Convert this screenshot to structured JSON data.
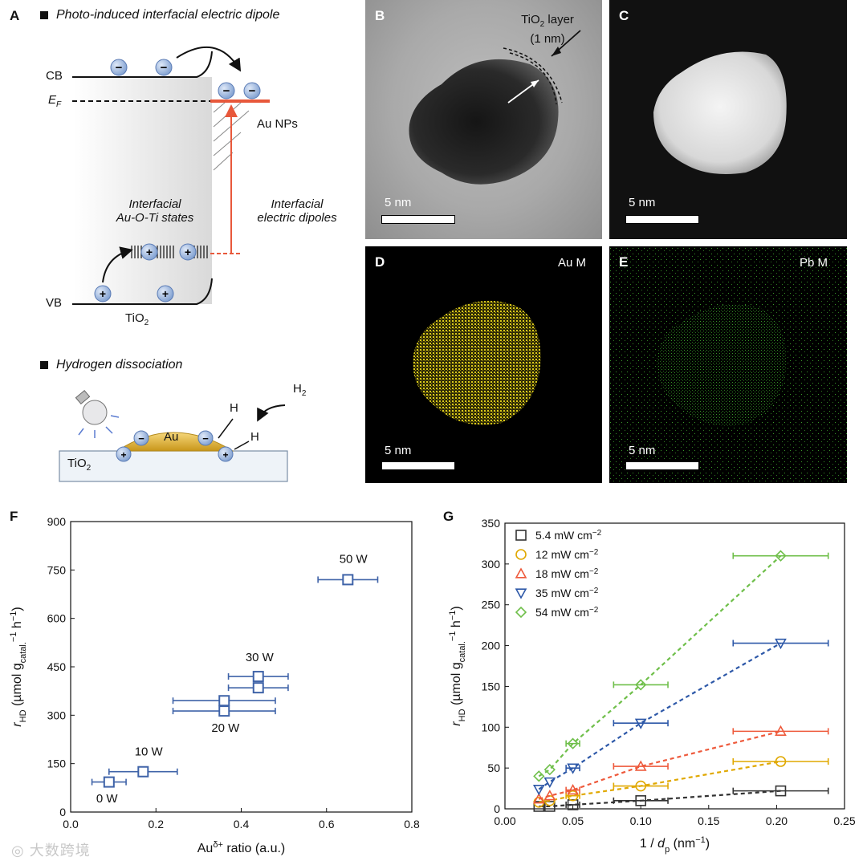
{
  "panelA": {
    "letter": "A",
    "heading": "Photo-induced interfacial electric dipole",
    "cb": "CB",
    "ef": "E",
    "ef_sub": "F",
    "vb": "VB",
    "au_nps": "Au NPs",
    "interfacial_states_1": "Interfacial",
    "interfacial_states_2": "Au-O-Ti states",
    "dipole_1": "Interfacial",
    "dipole_2": "electric dipoles",
    "tio2": "TiO",
    "tio2_sub": "2",
    "heading2": "Hydrogen dissociation",
    "h2": "H",
    "h2_sub": "2",
    "h": "H",
    "au": "Au",
    "tio2_b": "TiO",
    "tio2_b_sub": "2"
  },
  "panelB": {
    "letter": "B",
    "layer_1": "TiO",
    "layer_sub": "2",
    "layer_2": " layer",
    "layer_3": "(1 nm)",
    "scale": "5 nm"
  },
  "panelC": {
    "letter": "C",
    "scale": "5 nm"
  },
  "panelD": {
    "letter": "D",
    "element": "Au M",
    "scale": "5 nm"
  },
  "panelE": {
    "letter": "E",
    "element": "Pb M",
    "scale": "5 nm"
  },
  "panelF": {
    "letter": "F"
  },
  "panelG": {
    "letter": "G"
  },
  "watermark": "大数跨境",
  "chart_data": [
    {
      "id": "F",
      "type": "scatter",
      "xlabel": "Au^δ+ ratio (a.u.)",
      "ylabel": "r_HD (µmol g_catal.^-1 h^-1)",
      "xlim": [
        0.0,
        0.8
      ],
      "ylim": [
        0,
        900
      ],
      "xticks": [
        "0.0",
        "0.2",
        "0.4",
        "0.6",
        "0.8"
      ],
      "yticks": [
        "0",
        "150",
        "300",
        "450",
        "600",
        "750",
        "900"
      ],
      "color": "#3f63a8",
      "points": [
        {
          "x": 0.09,
          "y": 93,
          "xerr": 0.04,
          "label": "0 W"
        },
        {
          "x": 0.17,
          "y": 125,
          "xerr": 0.08,
          "label": "10 W"
        },
        {
          "x": 0.36,
          "y": 313,
          "xerr": 0.12,
          "label": "20 W"
        },
        {
          "x": 0.36,
          "y": 345,
          "xerr": 0.12,
          "label": ""
        },
        {
          "x": 0.44,
          "y": 385,
          "xerr": 0.07,
          "label": ""
        },
        {
          "x": 0.44,
          "y": 420,
          "xerr": 0.07,
          "label": "30 W"
        },
        {
          "x": 0.65,
          "y": 720,
          "xerr": 0.07,
          "label": "50 W"
        }
      ],
      "point_labels": [
        {
          "text": "0 W",
          "x": 0.06,
          "y": 30
        },
        {
          "text": "10 W",
          "x": 0.15,
          "y": 175
        },
        {
          "text": "20 W",
          "x": 0.33,
          "y": 248
        },
        {
          "text": "30 W",
          "x": 0.41,
          "y": 468
        },
        {
          "text": "50 W",
          "x": 0.63,
          "y": 772
        }
      ]
    },
    {
      "id": "G",
      "type": "scatter",
      "xlabel": "1 / d_p (nm^-1)",
      "ylabel": "r_HD (µmol g_catal.^-1 h^-1)",
      "xlim": [
        0.0,
        0.25
      ],
      "ylim": [
        0,
        350
      ],
      "xticks": [
        "0.00",
        "0.05",
        "0.10",
        "0.15",
        "0.20",
        "0.25"
      ],
      "yticks": [
        "0",
        "50",
        "100",
        "150",
        "200",
        "250",
        "300",
        "350"
      ],
      "legend_position": "top-left",
      "x": [
        0.025,
        0.033,
        0.05,
        0.1,
        0.203
      ],
      "xerr": [
        0.0,
        0.0,
        0.005,
        0.02,
        0.035
      ],
      "series": [
        {
          "name": "5.4 mW cm",
          "marker": "square",
          "color": "#333333",
          "values": [
            3,
            3,
            5,
            10,
            22
          ]
        },
        {
          "name": "12 mW cm",
          "marker": "circle",
          "color": "#e0a800",
          "values": [
            8,
            10,
            16,
            28,
            58
          ]
        },
        {
          "name": "18 mW cm",
          "marker": "triangle-up",
          "color": "#ee5a3c",
          "values": [
            12,
            16,
            23,
            52,
            95
          ]
        },
        {
          "name": "35 mW cm",
          "marker": "triangle-down",
          "color": "#2d58a8",
          "values": [
            24,
            33,
            50,
            105,
            203
          ]
        },
        {
          "name": "54 mW cm",
          "marker": "diamond",
          "color": "#6fbf4a",
          "values": [
            40,
            48,
            80,
            152,
            310
          ]
        }
      ],
      "legend_sup": "−2"
    }
  ]
}
